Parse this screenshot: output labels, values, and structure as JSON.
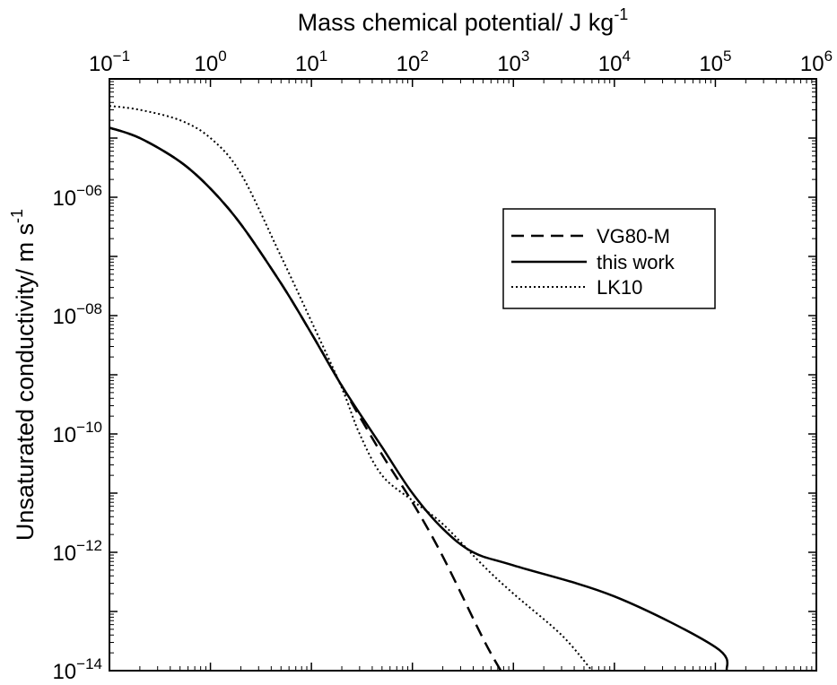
{
  "chart_data": {
    "type": "line",
    "xlabel": "Mass chemical potential/ J kg",
    "xlabel_sup": "-1",
    "ylabel": "Unsaturated conductivity/ m s",
    "ylabel_sup": "-1",
    "x_axis_position": "top",
    "x_scale": "log",
    "y_scale": "log",
    "xlim": [
      0.1,
      1000000
    ],
    "ylim": [
      1e-14,
      0.0001
    ],
    "x_ticks": [
      {
        "value": 0.1,
        "base": "10",
        "exp": "−1"
      },
      {
        "value": 1,
        "base": "10",
        "exp": "0"
      },
      {
        "value": 10,
        "base": "10",
        "exp": "1"
      },
      {
        "value": 100,
        "base": "10",
        "exp": "2"
      },
      {
        "value": 1000,
        "base": "10",
        "exp": "3"
      },
      {
        "value": 10000,
        "base": "10",
        "exp": "4"
      },
      {
        "value": 100000,
        "base": "10",
        "exp": "5"
      },
      {
        "value": 1000000,
        "base": "10",
        "exp": "6"
      }
    ],
    "y_ticks": [
      {
        "value": 1e-14,
        "base": "10",
        "exp": "−14"
      },
      {
        "value": 1e-12,
        "base": "10",
        "exp": "−12"
      },
      {
        "value": 1e-10,
        "base": "10",
        "exp": "−10"
      },
      {
        "value": 1e-08,
        "base": "10",
        "exp": "−08"
      },
      {
        "value": 1e-06,
        "base": "10",
        "exp": "−06"
      }
    ],
    "legend": {
      "position": "upper-right"
    },
    "series": [
      {
        "name": "VG80-M",
        "style": "dashed",
        "color": "#000000",
        "points": [
          [
            0.1,
            1.5e-05
          ],
          [
            0.2,
            1e-05
          ],
          [
            0.5,
            4e-06
          ],
          [
            1,
            1.4e-06
          ],
          [
            2,
            3.5e-07
          ],
          [
            5,
            3.5e-08
          ],
          [
            10,
            5e-09
          ],
          [
            20,
            6.5e-10
          ],
          [
            50,
            4.5e-11
          ],
          [
            100,
            7e-12
          ],
          [
            200,
            8.5e-13
          ],
          [
            500,
            3.5e-14
          ],
          [
            750,
            1e-14
          ]
        ]
      },
      {
        "name": "this work",
        "style": "solid",
        "color": "#000000",
        "points": [
          [
            0.1,
            1.5e-05
          ],
          [
            0.2,
            1e-05
          ],
          [
            0.5,
            4e-06
          ],
          [
            1,
            1.4e-06
          ],
          [
            2,
            3.5e-07
          ],
          [
            5,
            3.5e-08
          ],
          [
            10,
            5e-09
          ],
          [
            20,
            6.5e-10
          ],
          [
            50,
            6e-11
          ],
          [
            100,
            1e-11
          ],
          [
            200,
            2.5e-12
          ],
          [
            400,
            1e-12
          ],
          [
            1000,
            6e-13
          ],
          [
            10000,
            1.8e-13
          ],
          [
            100000,
            2.5e-14
          ],
          [
            130000,
            1e-14
          ]
        ]
      },
      {
        "name": "LK10",
        "style": "dotted",
        "color": "#000000",
        "points": [
          [
            0.1,
            3.5e-05
          ],
          [
            0.2,
            3e-05
          ],
          [
            0.5,
            2e-05
          ],
          [
            1,
            1e-05
          ],
          [
            2,
            2.5e-06
          ],
          [
            5,
            1e-07
          ],
          [
            10,
            8e-09
          ],
          [
            20,
            6e-10
          ],
          [
            30,
            1e-10
          ],
          [
            50,
            2e-11
          ],
          [
            100,
            7.5e-12
          ],
          [
            200,
            3e-12
          ],
          [
            500,
            6e-13
          ],
          [
            1000,
            2e-13
          ],
          [
            3000,
            4e-14
          ],
          [
            6000,
            1e-14
          ]
        ]
      }
    ]
  }
}
